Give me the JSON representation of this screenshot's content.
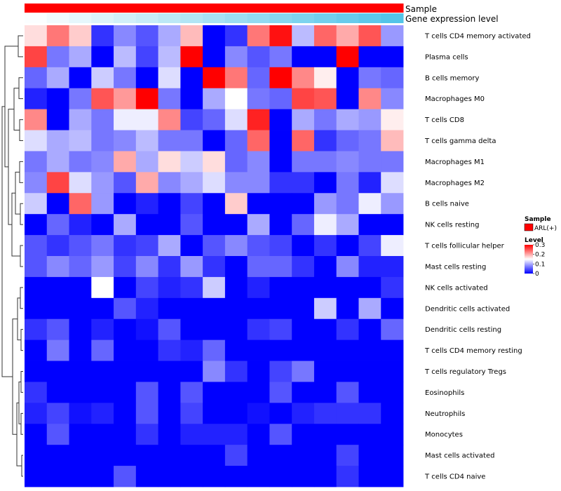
{
  "chart_data": {
    "type": "heatmap",
    "title": "",
    "annotation_tracks": [
      {
        "name": "Sample",
        "value": "ARL(+)",
        "color": "#ff0000"
      },
      {
        "name": "Gene expression level",
        "values": [
          0.02,
          0.08,
          0.14,
          0.2,
          0.26,
          0.32,
          0.38,
          0.44,
          0.5,
          0.56,
          0.62,
          0.68,
          0.74,
          0.8,
          0.86,
          0.92,
          0.98
        ],
        "color_low": "#ffffff",
        "color_high": "#4fc3e8"
      }
    ],
    "rows": [
      "T cells CD4 memory activated",
      "Plasma cells",
      "B cells memory",
      "Macrophages M0",
      "T cells CD8",
      "T cells gamma delta",
      "Macrophages M1",
      "Macrophages M2",
      "B cells naive",
      "NK cells resting",
      "T cells follicular helper",
      "Mast cells resting",
      "NK cells activated",
      "Dendritic cells activated",
      "Dendritic cells resting",
      "T cells CD4 memory resting",
      "T cells regulatory  Tregs",
      "Eosinophils",
      "Neutrophils",
      "Monocytes",
      "Mast cells activated",
      "T cells CD4 naive"
    ],
    "n_columns": 17,
    "values": [
      [
        0.17,
        0.23,
        0.18,
        0.03,
        0.08,
        0.05,
        0.1,
        0.19,
        0.0,
        0.03,
        0.23,
        0.29,
        0.11,
        0.24,
        0.2,
        0.25,
        0.09
      ],
      [
        0.26,
        0.07,
        0.1,
        0.0,
        0.11,
        0.04,
        0.11,
        0.3,
        0.0,
        0.08,
        0.05,
        0.07,
        0.0,
        0.0,
        0.3,
        0.0,
        0.0
      ],
      [
        0.06,
        0.1,
        0.0,
        0.12,
        0.07,
        0.0,
        0.13,
        0.0,
        0.3,
        0.23,
        0.06,
        0.3,
        0.22,
        0.16,
        0.0,
        0.07,
        0.06
      ],
      [
        0.02,
        0.0,
        0.07,
        0.25,
        0.21,
        0.3,
        0.07,
        0.0,
        0.1,
        0.15,
        0.07,
        0.06,
        0.26,
        0.25,
        0.0,
        0.22,
        0.08
      ],
      [
        0.22,
        0.0,
        0.1,
        0.07,
        0.14,
        0.14,
        0.22,
        0.04,
        0.06,
        0.13,
        0.28,
        0.0,
        0.1,
        0.07,
        0.1,
        0.09,
        0.16
      ],
      [
        0.13,
        0.1,
        0.11,
        0.07,
        0.08,
        0.11,
        0.07,
        0.07,
        0.0,
        0.06,
        0.24,
        0.0,
        0.24,
        0.03,
        0.06,
        0.07,
        0.19
      ],
      [
        0.07,
        0.1,
        0.07,
        0.08,
        0.2,
        0.1,
        0.17,
        0.12,
        0.17,
        0.06,
        0.08,
        0.0,
        0.07,
        0.07,
        0.08,
        0.07,
        0.07
      ],
      [
        0.08,
        0.26,
        0.13,
        0.09,
        0.05,
        0.2,
        0.08,
        0.1,
        0.13,
        0.08,
        0.08,
        0.03,
        0.03,
        0.0,
        0.07,
        0.02,
        0.13
      ],
      [
        0.12,
        0.0,
        0.24,
        0.09,
        0.0,
        0.02,
        0.0,
        0.04,
        0.0,
        0.18,
        0.0,
        0.0,
        0.0,
        0.09,
        0.07,
        0.14,
        0.09
      ],
      [
        0.0,
        0.06,
        0.02,
        0.0,
        0.1,
        0.0,
        0.0,
        0.05,
        0.0,
        0.0,
        0.1,
        0.0,
        0.06,
        0.14,
        0.1,
        0.0,
        0.0
      ],
      [
        0.05,
        0.03,
        0.05,
        0.07,
        0.03,
        0.04,
        0.1,
        0.0,
        0.05,
        0.08,
        0.05,
        0.04,
        0.0,
        0.03,
        0.0,
        0.04,
        0.14
      ],
      [
        0.05,
        0.08,
        0.06,
        0.09,
        0.04,
        0.08,
        0.03,
        0.09,
        0.03,
        0.0,
        0.06,
        0.06,
        0.03,
        0.0,
        0.08,
        0.02,
        0.02
      ],
      [
        0.0,
        0.0,
        0.0,
        0.15,
        0.0,
        0.04,
        0.02,
        0.03,
        0.12,
        0.0,
        0.02,
        0.0,
        0.0,
        0.0,
        0.0,
        0.0,
        0.03
      ],
      [
        0.0,
        0.0,
        0.0,
        0.0,
        0.05,
        0.02,
        0.0,
        0.0,
        0.0,
        0.0,
        0.0,
        0.0,
        0.0,
        0.12,
        0.0,
        0.1,
        0.0
      ],
      [
        0.03,
        0.05,
        0.0,
        0.02,
        0.0,
        0.01,
        0.05,
        0.0,
        0.0,
        0.0,
        0.03,
        0.04,
        0.0,
        0.0,
        0.03,
        0.0,
        0.06
      ],
      [
        0.0,
        0.07,
        0.0,
        0.06,
        0.0,
        0.0,
        0.03,
        0.02,
        0.06,
        0.0,
        0.0,
        0.0,
        0.0,
        0.0,
        0.0,
        0.0,
        0.0
      ],
      [
        0.0,
        0.0,
        0.0,
        0.0,
        0.0,
        0.0,
        0.0,
        0.0,
        0.08,
        0.03,
        0.0,
        0.04,
        0.07,
        0.0,
        0.0,
        0.0,
        0.0
      ],
      [
        0.03,
        0.0,
        0.0,
        0.0,
        0.0,
        0.05,
        0.0,
        0.05,
        0.0,
        0.0,
        0.0,
        0.05,
        0.0,
        0.0,
        0.05,
        0.0,
        0.0
      ],
      [
        0.02,
        0.04,
        0.01,
        0.02,
        0.0,
        0.05,
        0.0,
        0.04,
        0.0,
        0.0,
        0.01,
        0.0,
        0.02,
        0.03,
        0.03,
        0.03,
        0.0
      ],
      [
        0.0,
        0.05,
        0.0,
        0.0,
        0.0,
        0.03,
        0.0,
        0.02,
        0.02,
        0.02,
        0.0,
        0.05,
        0.0,
        0.0,
        0.0,
        0.0,
        0.0
      ],
      [
        0.0,
        0.0,
        0.0,
        0.0,
        0.0,
        0.0,
        0.0,
        0.0,
        0.0,
        0.04,
        0.0,
        0.0,
        0.0,
        0.0,
        0.04,
        0.0,
        0.0
      ],
      [
        0.0,
        0.0,
        0.0,
        0.0,
        0.05,
        0.0,
        0.0,
        0.0,
        0.0,
        0.0,
        0.0,
        0.0,
        0.0,
        0.0,
        0.03,
        0.0,
        0.0
      ]
    ],
    "color_scale": {
      "low": "#0000ff",
      "mid": "#ffffff",
      "high": "#ff0000",
      "min": 0,
      "mid_value": 0.15,
      "max": 0.3
    },
    "legend": {
      "sample_title": "Sample",
      "sample_entry": "ARL(+)",
      "level_title": "Level",
      "ticks": [
        "0.3",
        "0.2",
        "0.1",
        "0"
      ],
      "tick_values": [
        0.3,
        0.2,
        0.1,
        0
      ],
      "placement": "right"
    },
    "dendrogram": "row clustering tree on the left"
  }
}
